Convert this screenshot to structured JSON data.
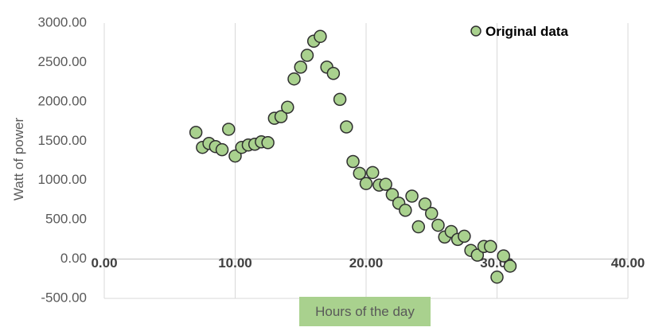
{
  "chart_data": {
    "type": "scatter",
    "xlabel": "Hours of the day",
    "ylabel": "Watt of power",
    "xlim": [
      0,
      40
    ],
    "ylim": [
      -500,
      3000
    ],
    "x_ticks": [
      "0.00",
      "10.00",
      "20.00",
      "30.00",
      "40.00"
    ],
    "y_ticks": [
      "3000.00",
      "2500.00",
      "2000.00",
      "1500.00",
      "1000.00",
      "500.00",
      "0.00",
      "-500.00"
    ],
    "grid": "vertical",
    "legend_position": "top-right",
    "marker_color": "#a9d18e",
    "marker_edge_color": "#2f2f2f",
    "series": [
      {
        "name": "Original data",
        "points": [
          {
            "x": 7.0,
            "y": 1610
          },
          {
            "x": 7.5,
            "y": 1420
          },
          {
            "x": 8.0,
            "y": 1470
          },
          {
            "x": 8.5,
            "y": 1430
          },
          {
            "x": 9.0,
            "y": 1390
          },
          {
            "x": 9.5,
            "y": 1650
          },
          {
            "x": 10.0,
            "y": 1310
          },
          {
            "x": 10.5,
            "y": 1420
          },
          {
            "x": 11.0,
            "y": 1450
          },
          {
            "x": 11.5,
            "y": 1460
          },
          {
            "x": 12.0,
            "y": 1490
          },
          {
            "x": 12.5,
            "y": 1480
          },
          {
            "x": 13.0,
            "y": 1790
          },
          {
            "x": 13.5,
            "y": 1810
          },
          {
            "x": 14.0,
            "y": 1930
          },
          {
            "x": 14.5,
            "y": 2290
          },
          {
            "x": 15.0,
            "y": 2440
          },
          {
            "x": 15.5,
            "y": 2590
          },
          {
            "x": 16.0,
            "y": 2770
          },
          {
            "x": 16.5,
            "y": 2830
          },
          {
            "x": 17.0,
            "y": 2440
          },
          {
            "x": 17.5,
            "y": 2360
          },
          {
            "x": 18.0,
            "y": 2030
          },
          {
            "x": 18.5,
            "y": 1680
          },
          {
            "x": 19.0,
            "y": 1240
          },
          {
            "x": 19.5,
            "y": 1090
          },
          {
            "x": 20.0,
            "y": 960
          },
          {
            "x": 20.5,
            "y": 1100
          },
          {
            "x": 21.0,
            "y": 940
          },
          {
            "x": 21.5,
            "y": 950
          },
          {
            "x": 22.0,
            "y": 820
          },
          {
            "x": 22.5,
            "y": 710
          },
          {
            "x": 23.0,
            "y": 620
          },
          {
            "x": 23.5,
            "y": 800
          },
          {
            "x": 24.0,
            "y": 410
          },
          {
            "x": 24.5,
            "y": 700
          },
          {
            "x": 25.0,
            "y": 580
          },
          {
            "x": 25.5,
            "y": 430
          },
          {
            "x": 26.0,
            "y": 280
          },
          {
            "x": 26.5,
            "y": 350
          },
          {
            "x": 27.0,
            "y": 250
          },
          {
            "x": 27.5,
            "y": 290
          },
          {
            "x": 28.0,
            "y": 110
          },
          {
            "x": 28.5,
            "y": 50
          },
          {
            "x": 29.0,
            "y": 160
          },
          {
            "x": 29.5,
            "y": 160
          },
          {
            "x": 30.0,
            "y": -230
          },
          {
            "x": 30.5,
            "y": 40
          },
          {
            "x": 31.0,
            "y": -90
          }
        ]
      }
    ]
  }
}
